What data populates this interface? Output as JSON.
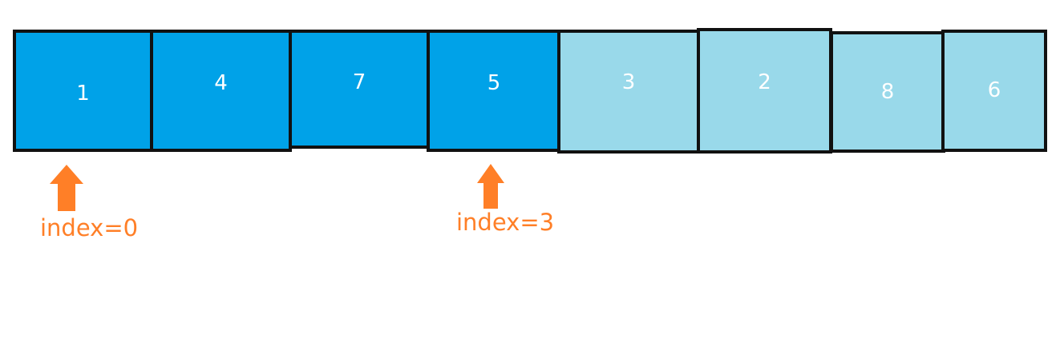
{
  "colors": {
    "active": "#00a2e8",
    "inactive": "#99d9ea",
    "pointer": "#ff7f27"
  },
  "array": [
    {
      "value": "1",
      "state": "active"
    },
    {
      "value": "4",
      "state": "active"
    },
    {
      "value": "7",
      "state": "active"
    },
    {
      "value": "5",
      "state": "active"
    },
    {
      "value": "3",
      "state": "inactive"
    },
    {
      "value": "2",
      "state": "inactive"
    },
    {
      "value": "8",
      "state": "inactive"
    },
    {
      "value": "6",
      "state": "inactive"
    }
  ],
  "pointers": [
    {
      "label": "index=0",
      "icon": "up-arrow-icon"
    },
    {
      "label": "index=3",
      "icon": "up-arrow-icon"
    }
  ]
}
